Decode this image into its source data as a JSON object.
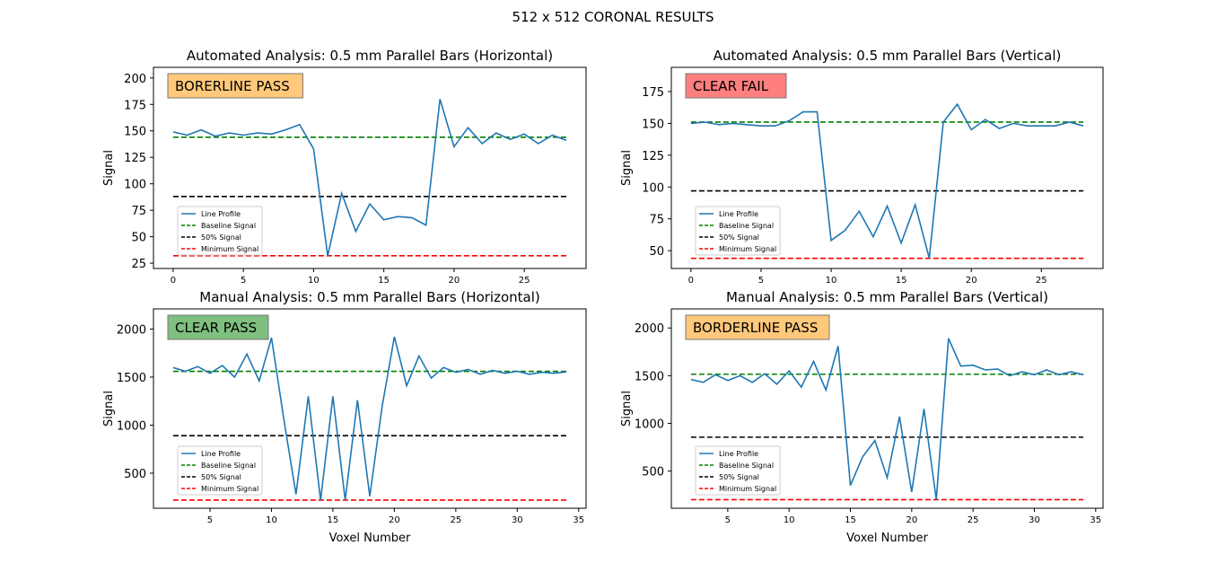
{
  "figure_title": "512 x 512 CORONAL RESULTS",
  "colors": {
    "line": "#1f77b4",
    "baseline": "#008000",
    "half": "#000000",
    "minimum": "#ff0000",
    "fail": "#ff7f7f",
    "borderline": "#ffc87a",
    "pass": "#7fbf7f"
  },
  "legend": [
    "Line Profile",
    "Baseline Signal",
    "50% Signal",
    "Minimum Signal"
  ],
  "chart_data": [
    {
      "type": "line",
      "title": "Automated Analysis: 0.5 mm Parallel Bars (Horizontal)",
      "xlabel": "",
      "ylabel": "Signal",
      "status": "BORERLINE PASS",
      "status_color": "borderline",
      "xlim": [
        -1.4,
        29.4
      ],
      "ylim": [
        20,
        210
      ],
      "xticks": [
        0,
        5,
        10,
        15,
        20,
        25
      ],
      "yticks": [
        25,
        50,
        75,
        100,
        125,
        150,
        175,
        200
      ],
      "x": [
        0,
        1,
        2,
        3,
        4,
        5,
        6,
        7,
        8,
        9,
        10,
        11,
        12,
        13,
        14,
        15,
        16,
        17,
        18,
        19,
        20,
        21,
        22,
        23,
        24,
        25,
        26,
        27,
        28
      ],
      "series": [
        {
          "name": "Line Profile",
          "values": [
            149,
            146,
            151,
            145,
            148,
            146,
            148,
            147,
            151,
            156,
            133,
            32,
            91,
            55,
            81,
            66,
            69,
            68,
            61,
            180,
            135,
            153,
            138,
            148,
            142,
            147,
            138,
            146,
            141
          ]
        }
      ],
      "baseline": 144,
      "half": 88,
      "minimum": 32
    },
    {
      "type": "line",
      "title": "Automated Analysis: 0.5 mm Parallel Bars (Vertical)",
      "xlabel": "",
      "ylabel": "Signal",
      "status": "CLEAR FAIL",
      "status_color": "fail",
      "xlim": [
        -1.4,
        29.4
      ],
      "ylim": [
        36,
        194
      ],
      "xticks": [
        0,
        5,
        10,
        15,
        20,
        25
      ],
      "yticks": [
        50,
        75,
        100,
        125,
        150,
        175
      ],
      "x": [
        0,
        1,
        2,
        3,
        4,
        5,
        6,
        7,
        8,
        9,
        10,
        11,
        12,
        13,
        14,
        15,
        16,
        17,
        18,
        19,
        20,
        21,
        22,
        23,
        24,
        25,
        26,
        27,
        28
      ],
      "series": [
        {
          "name": "Line Profile",
          "values": [
            150,
            151,
            149,
            150,
            149,
            148,
            148,
            152,
            159,
            159,
            58,
            66,
            81,
            61,
            85,
            56,
            86,
            44,
            151,
            165,
            145,
            153,
            146,
            150,
            148,
            148,
            148,
            151,
            148
          ]
        }
      ],
      "baseline": 151,
      "half": 97,
      "minimum": 44
    },
    {
      "type": "line",
      "title": "Manual Analysis: 0.5 mm Parallel Bars (Horizontal)",
      "xlabel": "Voxel Number",
      "ylabel": "Signal",
      "status": "CLEAR PASS",
      "status_color": "pass",
      "xlim": [
        0.4,
        35.6
      ],
      "ylim": [
        135,
        2210
      ],
      "xticks": [
        5,
        10,
        15,
        20,
        25,
        30,
        35
      ],
      "yticks": [
        500,
        1000,
        1500,
        2000
      ],
      "x": [
        2,
        3,
        4,
        5,
        6,
        7,
        8,
        9,
        10,
        11,
        12,
        13,
        14,
        15,
        16,
        17,
        18,
        19,
        20,
        21,
        22,
        23,
        24,
        25,
        26,
        27,
        28,
        29,
        30,
        31,
        32,
        33,
        34
      ],
      "series": [
        {
          "name": "Line Profile",
          "values": [
            1600,
            1560,
            1610,
            1540,
            1620,
            1500,
            1740,
            1460,
            1910,
            1070,
            280,
            1300,
            220,
            1300,
            220,
            1260,
            260,
            1190,
            1920,
            1410,
            1720,
            1490,
            1600,
            1550,
            1580,
            1530,
            1570,
            1540,
            1560,
            1530,
            1550,
            1540,
            1555
          ]
        }
      ],
      "baseline": 1560,
      "half": 890,
      "minimum": 220
    },
    {
      "type": "line",
      "title": "Manual Analysis: 0.5 mm Parallel Bars (Vertical)",
      "xlabel": "Voxel Number",
      "ylabel": "Signal",
      "status": "BORDERLINE PASS",
      "status_color": "borderline",
      "xlim": [
        0.4,
        35.6
      ],
      "ylim": [
        110,
        2200
      ],
      "xticks": [
        5,
        10,
        15,
        20,
        25,
        30,
        35
      ],
      "yticks": [
        500,
        1000,
        1500,
        2000
      ],
      "x": [
        2,
        3,
        4,
        5,
        6,
        7,
        8,
        9,
        10,
        11,
        12,
        13,
        14,
        15,
        16,
        17,
        18,
        19,
        20,
        21,
        22,
        23,
        24,
        25,
        26,
        27,
        28,
        29,
        30,
        31,
        32,
        33,
        34
      ],
      "series": [
        {
          "name": "Line Profile",
          "values": [
            1460,
            1430,
            1510,
            1450,
            1500,
            1430,
            1520,
            1410,
            1550,
            1380,
            1650,
            1350,
            1810,
            350,
            650,
            820,
            430,
            1070,
            280,
            1150,
            200,
            1890,
            1600,
            1610,
            1560,
            1570,
            1500,
            1540,
            1510,
            1560,
            1510,
            1540,
            1510
          ]
        }
      ],
      "baseline": 1515,
      "half": 855,
      "minimum": 200
    }
  ]
}
